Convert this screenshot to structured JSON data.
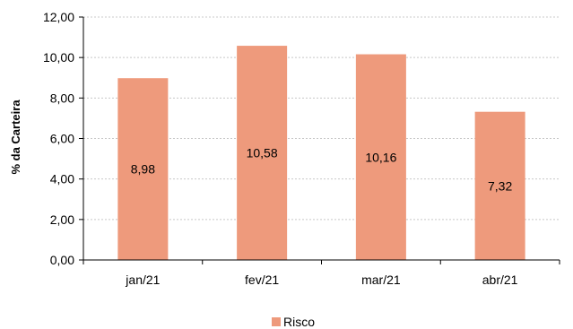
{
  "chart_data": {
    "type": "bar",
    "categories": [
      "jan/21",
      "fev/21",
      "mar/21",
      "abr/21"
    ],
    "series": [
      {
        "name": "Risco",
        "values": [
          8.98,
          10.58,
          10.16,
          7.32
        ],
        "labels": [
          "8,98",
          "10,58",
          "10,16",
          "7,32"
        ]
      }
    ],
    "ylabel": "% da Carteira",
    "ylim": [
      0,
      12
    ],
    "yticks": [
      0,
      2,
      4,
      6,
      8,
      10,
      12
    ],
    "ytick_labels": [
      "0,00",
      "2,00",
      "4,00",
      "6,00",
      "8,00",
      "10,00",
      "12,00"
    ],
    "grid": true,
    "legend_position": "bottom",
    "bar_color": "#EE9A7C"
  }
}
